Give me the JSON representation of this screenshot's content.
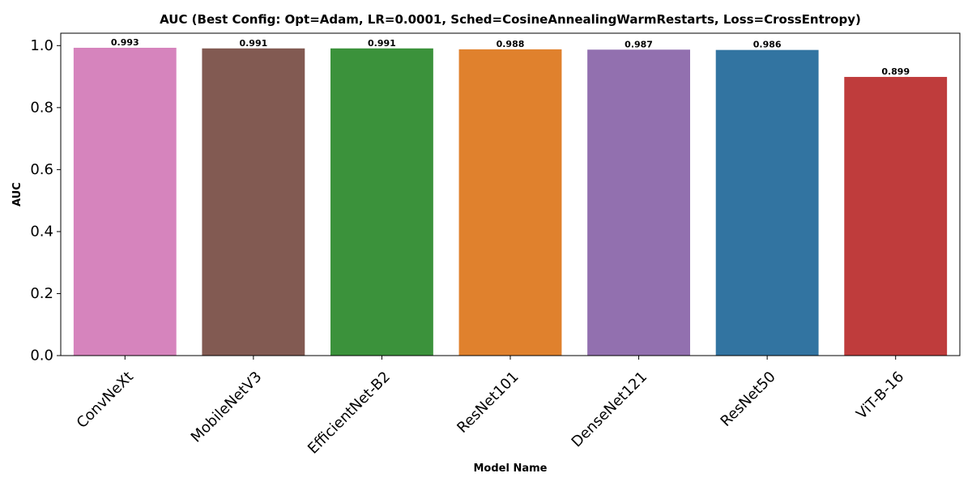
{
  "chart_data": {
    "type": "bar",
    "title": "AUC (Best Config: Opt=Adam, LR=0.0001, Sched=CosineAnnealingWarmRestarts, Loss=CrossEntropy)",
    "xlabel": "Model Name",
    "ylabel": "AUC",
    "categories": [
      "ConvNeXt",
      "MobileNetV3",
      "EfficientNet-B2",
      "ResNet101",
      "DenseNet121",
      "ResNet50",
      "ViT-B-16"
    ],
    "values": [
      0.993,
      0.991,
      0.991,
      0.988,
      0.987,
      0.986,
      0.899
    ],
    "value_labels": [
      "0.993",
      "0.991",
      "0.991",
      "0.988",
      "0.987",
      "0.986",
      "0.899"
    ],
    "colors": [
      "#d684bd",
      "#825a52",
      "#3b923b",
      "#e0812d",
      "#9270af",
      "#3274a1",
      "#bf3c3c"
    ],
    "ylim": [
      0,
      1.04
    ],
    "yticks": [
      0.0,
      0.2,
      0.4,
      0.6,
      0.8,
      1.0
    ],
    "ytick_labels": [
      "0.0",
      "0.2",
      "0.4",
      "0.6",
      "0.8",
      "1.0"
    ],
    "grid": false,
    "legend": false
  }
}
